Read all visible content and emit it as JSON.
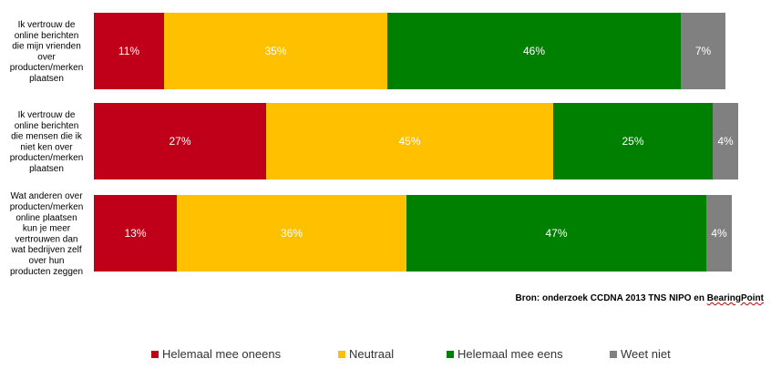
{
  "chart_data": {
    "type": "bar",
    "orientation": "horizontal",
    "stacked": true,
    "percent_stacked": true,
    "xlim": [
      0,
      100
    ],
    "grid": false,
    "legend_position": "bottom",
    "categories": [
      "Ik vertrouw de online berichten die mijn vrienden over producten/merken plaatsen",
      "Ik vertrouw de online berichten die mensen die ik niet ken over producten/merken plaatsen",
      "Wat anderen over producten/merken online plaatsen kun je meer vertrouwen dan wat bedrijven zelf over hun producten zeggen"
    ],
    "category_lines": [
      [
        "Ik vertrouw de",
        "online berichten",
        "die mijn vrienden",
        "over",
        "producten/merken",
        "plaatsen"
      ],
      [
        "Ik vertrouw de",
        "online berichten",
        "die mensen die ik",
        "niet ken over",
        "producten/merken",
        "plaatsen"
      ],
      [
        "Wat anderen over",
        "producten/merken",
        "online plaatsen",
        "kun je meer",
        "vertrouwen dan",
        "wat bedrijven zelf",
        "over hun",
        "producten zeggen"
      ]
    ],
    "series": [
      {
        "name": "Helemaal mee oneens",
        "color": "#c00018",
        "values": [
          11,
          27,
          13
        ],
        "labels": [
          "11%",
          "27%",
          "13%"
        ]
      },
      {
        "name": "Neutraal",
        "color": "#ffc000",
        "values": [
          35,
          45,
          36
        ],
        "labels": [
          "35%",
          "45%",
          "36%"
        ]
      },
      {
        "name": "Helemaal mee eens",
        "color": "#008000",
        "values": [
          46,
          25,
          47
        ],
        "labels": [
          "46%",
          "25%",
          "47%"
        ]
      },
      {
        "name": "Weet niet",
        "color": "#808080",
        "values": [
          7,
          4,
          4
        ],
        "labels": [
          "7%",
          "4%",
          "4%"
        ]
      }
    ]
  },
  "source": {
    "text": "Bron: onderzoek CCDNA 2013 TNS NIPO en ",
    "underlined": "BearingPoint"
  }
}
